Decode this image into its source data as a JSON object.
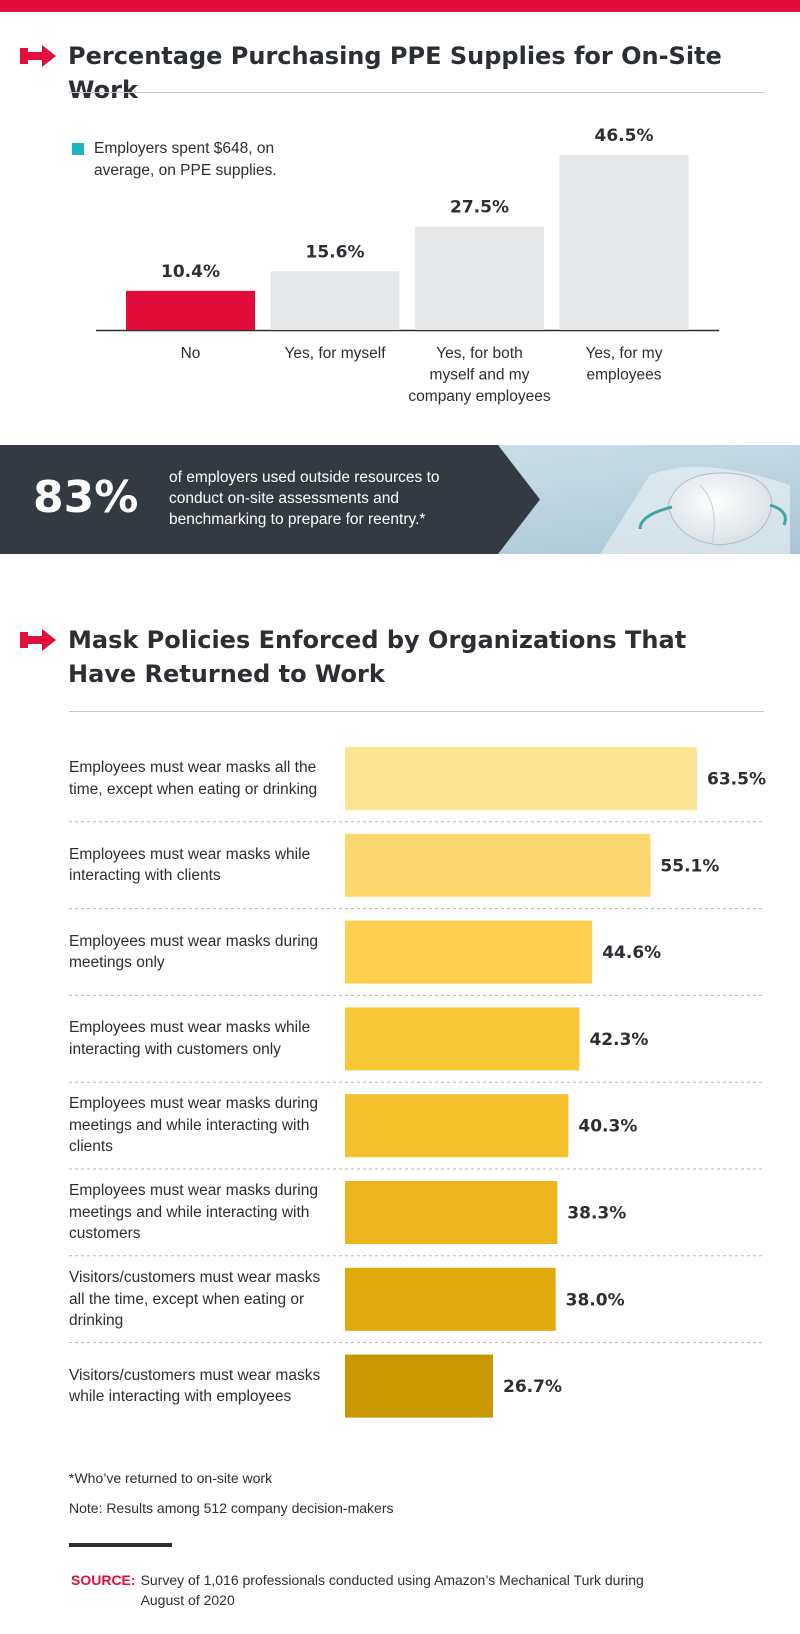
{
  "colors": {
    "accent_red": "#e30d3c",
    "teal": "#1fb3bf",
    "bar_gray": "#e6e7e8",
    "dark_panel": "#343a42",
    "bar_gold_light": "#fde394",
    "bar_gold_dark": "#c89700"
  },
  "icons": {
    "section_marker": "arrow-right-icon",
    "banner_photo": "face-mask-photo"
  },
  "section1": {
    "title": "Percentage Purchasing PPE Supplies for On-Site Work",
    "legend_text": "Employers spent $648, on average, on PPE supplies."
  },
  "banner": {
    "stat": "83%",
    "text": "of employers used outside resources to conduct on-site assessments and benchmarking to prepare for reentry.*"
  },
  "section2": {
    "title": "Mask Policies Enforced by Organizations That Have Returned to Work"
  },
  "chart_data": [
    {
      "type": "bar",
      "orientation": "vertical",
      "title": "Percentage Purchasing PPE Supplies for On-Site Work",
      "categories": [
        "No",
        "Yes, for myself",
        "Yes, for both myself and my company employees",
        "Yes, for my employees"
      ],
      "values": [
        10.4,
        15.6,
        27.5,
        46.5
      ],
      "value_labels": [
        "10.4%",
        "15.6%",
        "27.5%",
        "46.5%"
      ],
      "unit": "%",
      "highlight_index": 0,
      "colors": [
        "#e30d3c",
        "#e6e7e8",
        "#e6e7e8",
        "#e6e7e8"
      ],
      "ylim": [
        0,
        46.5
      ],
      "grid": false
    },
    {
      "type": "bar",
      "orientation": "horizontal",
      "title": "Mask Policies Enforced by Organizations That Have Returned to Work",
      "categories": [
        "Employees must wear masks all the time, except when eating or drinking",
        "Employees must wear masks while interacting with clients",
        "Employees must wear masks during meetings only",
        "Employees must wear masks while interacting with customers only",
        "Employees must wear masks during meetings and while interacting with clients",
        "Employees must wear masks during meetings and while interacting with customers",
        "Visitors/customers must wear masks all the time, except when eating or drinking",
        "Visitors/customers must wear masks while interacting with employees"
      ],
      "values": [
        63.5,
        55.1,
        44.6,
        42.3,
        40.3,
        38.3,
        38.0,
        26.7
      ],
      "value_labels": [
        "63.5%",
        "55.1%",
        "44.6%",
        "42.3%",
        "40.3%",
        "38.3%",
        "38.0%",
        "26.7%"
      ],
      "unit": "%",
      "colors": [
        "#fde394",
        "#fcd86e",
        "#fdd052",
        "#f9c73a",
        "#f5c12c",
        "#ecb41d",
        "#e0a90c",
        "#c89700"
      ],
      "xlim": [
        0,
        63.5
      ],
      "grid": false
    }
  ],
  "footnotes": {
    "asterisk": "*Who’ve returned to on-site work",
    "note": "Note: Results among 512 company decision-makers"
  },
  "source": {
    "label": "SOURCE:",
    "text": "Survey of 1,016 professionals conducted using Amazon’s Mechanical Turk during August of 2020"
  }
}
